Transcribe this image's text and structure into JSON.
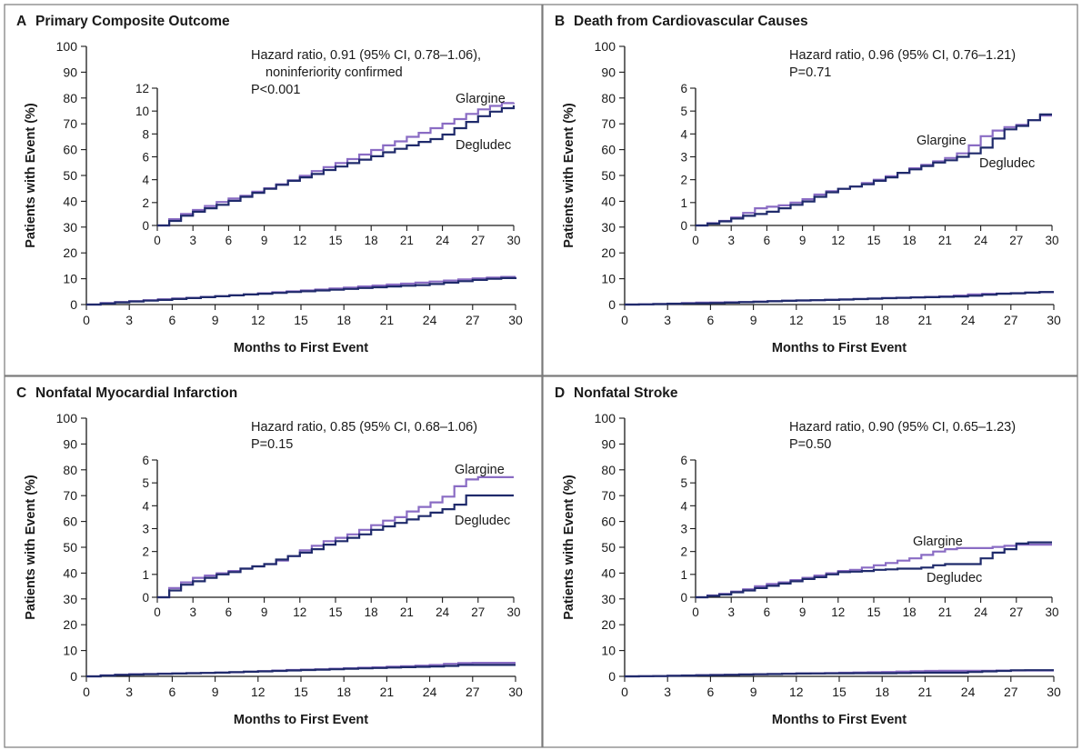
{
  "colors": {
    "glargine": "#8a6cc4",
    "degludec": "#1f2a6b",
    "axis": "#1a1a1a",
    "border": "#7a7a7a"
  },
  "chart_data": [
    {
      "type": "line",
      "letter": "A",
      "title": "Primary Composite Outcome",
      "xlabel": "Months to First Event",
      "ylabel": "Patients with Event (%)",
      "xlim": [
        0,
        30
      ],
      "ylim": [
        0,
        100
      ],
      "x_ticks": [
        "0",
        "3",
        "6",
        "9",
        "12",
        "15",
        "18",
        "21",
        "24",
        "27",
        "30"
      ],
      "y_ticks": [
        "0",
        "10",
        "20",
        "30",
        "40",
        "50",
        "60",
        "70",
        "80",
        "90",
        "100"
      ],
      "annotation": [
        "Hazard ratio, 0.91 (95% CI, 0.78–1.06),",
        "noninferiority confirmed",
        "P<0.001"
      ],
      "inset": {
        "ylim": [
          0,
          12
        ],
        "y_ticks": [
          "0",
          "2",
          "4",
          "6",
          "8",
          "10",
          "12"
        ],
        "x_ticks": [
          "0",
          "3",
          "6",
          "9",
          "12",
          "15",
          "18",
          "21",
          "24",
          "27",
          "30"
        ]
      },
      "series": [
        {
          "name": "Glargine",
          "x": [
            0,
            1,
            2,
            3,
            4,
            5,
            6,
            7,
            8,
            9,
            10,
            11,
            12,
            13,
            14,
            15,
            16,
            17,
            18,
            19,
            20,
            21,
            22,
            23,
            24,
            25,
            26,
            27,
            28,
            29,
            30
          ],
          "values": [
            0,
            0.55,
            1.0,
            1.35,
            1.7,
            2.05,
            2.35,
            2.6,
            2.95,
            3.25,
            3.6,
            3.95,
            4.35,
            4.75,
            5.1,
            5.45,
            5.8,
            6.2,
            6.6,
            7.0,
            7.35,
            7.75,
            8.1,
            8.5,
            8.9,
            9.3,
            9.75,
            10.15,
            10.45,
            10.7,
            10.75
          ]
        },
        {
          "name": "Degludec",
          "x": [
            0,
            1,
            2,
            3,
            4,
            5,
            6,
            7,
            8,
            9,
            10,
            11,
            12,
            13,
            14,
            15,
            16,
            17,
            18,
            19,
            20,
            21,
            22,
            23,
            24,
            25,
            26,
            27,
            28,
            29,
            30
          ],
          "values": [
            0,
            0.4,
            0.85,
            1.2,
            1.5,
            1.8,
            2.15,
            2.5,
            2.85,
            3.2,
            3.55,
            3.9,
            4.2,
            4.5,
            4.85,
            5.15,
            5.45,
            5.75,
            6.05,
            6.4,
            6.7,
            7.0,
            7.3,
            7.55,
            7.95,
            8.5,
            9.05,
            9.55,
            9.95,
            10.25,
            10.5
          ]
        }
      ]
    },
    {
      "type": "line",
      "letter": "B",
      "title": "Death from Cardiovascular Causes",
      "xlabel": "Months to First Event",
      "ylabel": "Patients with Event (%)",
      "xlim": [
        0,
        30
      ],
      "ylim": [
        0,
        100
      ],
      "x_ticks": [
        "0",
        "3",
        "6",
        "9",
        "12",
        "15",
        "18",
        "21",
        "24",
        "27",
        "30"
      ],
      "y_ticks": [
        "0",
        "10",
        "20",
        "30",
        "40",
        "50",
        "60",
        "70",
        "80",
        "90",
        "100"
      ],
      "annotation": [
        "Hazard ratio, 0.96 (95% CI, 0.76–1.21)",
        "P=0.71"
      ],
      "inset": {
        "ylim": [
          0,
          6
        ],
        "y_ticks": [
          "0",
          "1",
          "2",
          "3",
          "4",
          "5",
          "6"
        ],
        "x_ticks": [
          "0",
          "3",
          "6",
          "9",
          "12",
          "15",
          "18",
          "21",
          "24",
          "27",
          "30"
        ]
      },
      "series": [
        {
          "name": "Glargine",
          "x": [
            0,
            1,
            2,
            3,
            4,
            5,
            6,
            7,
            8,
            9,
            10,
            11,
            12,
            13,
            14,
            15,
            16,
            17,
            18,
            19,
            20,
            21,
            22,
            23,
            24,
            25,
            26,
            27,
            28,
            29,
            30
          ],
          "values": [
            0,
            0.1,
            0.2,
            0.35,
            0.55,
            0.75,
            0.82,
            0.88,
            1.0,
            1.15,
            1.35,
            1.5,
            1.6,
            1.7,
            1.85,
            2.0,
            2.15,
            2.3,
            2.5,
            2.65,
            2.8,
            2.95,
            3.15,
            3.5,
            3.9,
            4.15,
            4.3,
            4.4,
            4.6,
            4.8,
            4.8
          ]
        },
        {
          "name": "Degludec",
          "x": [
            0,
            1,
            2,
            3,
            4,
            5,
            6,
            7,
            8,
            9,
            10,
            11,
            12,
            13,
            14,
            15,
            16,
            17,
            18,
            19,
            20,
            21,
            22,
            23,
            24,
            25,
            26,
            27,
            28,
            29,
            30
          ],
          "values": [
            0,
            0.08,
            0.18,
            0.3,
            0.42,
            0.5,
            0.6,
            0.75,
            0.9,
            1.05,
            1.25,
            1.45,
            1.6,
            1.7,
            1.8,
            1.95,
            2.1,
            2.3,
            2.45,
            2.6,
            2.75,
            2.85,
            3.0,
            3.15,
            3.4,
            3.8,
            4.2,
            4.35,
            4.6,
            4.85,
            4.85
          ]
        }
      ]
    },
    {
      "type": "line",
      "letter": "C",
      "title": "Nonfatal Myocardial Infarction",
      "xlabel": "Months to First Event",
      "ylabel": "Patients with Event (%)",
      "xlim": [
        0,
        30
      ],
      "ylim": [
        0,
        100
      ],
      "x_ticks": [
        "0",
        "3",
        "6",
        "9",
        "12",
        "15",
        "18",
        "21",
        "24",
        "27",
        "30"
      ],
      "y_ticks": [
        "0",
        "10",
        "20",
        "30",
        "40",
        "50",
        "60",
        "70",
        "80",
        "90",
        "100"
      ],
      "annotation": [
        "Hazard ratio, 0.85 (95% CI, 0.68–1.06)",
        "P=0.15"
      ],
      "inset": {
        "ylim": [
          0,
          6
        ],
        "y_ticks": [
          "0",
          "1",
          "2",
          "3",
          "4",
          "5",
          "6"
        ],
        "x_ticks": [
          "0",
          "3",
          "6",
          "9",
          "12",
          "15",
          "18",
          "21",
          "24",
          "27",
          "30"
        ]
      },
      "series": [
        {
          "name": "Glargine",
          "x": [
            0,
            1,
            2,
            3,
            4,
            5,
            6,
            7,
            8,
            9,
            10,
            11,
            12,
            13,
            14,
            15,
            16,
            17,
            18,
            19,
            20,
            21,
            22,
            23,
            24,
            25,
            26,
            27,
            28,
            29,
            30
          ],
          "values": [
            0,
            0.4,
            0.65,
            0.85,
            0.95,
            1.05,
            1.15,
            1.25,
            1.35,
            1.45,
            1.6,
            1.8,
            2.05,
            2.25,
            2.45,
            2.6,
            2.75,
            2.95,
            3.15,
            3.35,
            3.5,
            3.75,
            3.95,
            4.15,
            4.4,
            4.85,
            5.15,
            5.25,
            5.25,
            5.25,
            5.25
          ]
        },
        {
          "name": "Degludec",
          "x": [
            0,
            1,
            2,
            3,
            4,
            5,
            6,
            7,
            8,
            9,
            10,
            11,
            12,
            13,
            14,
            15,
            16,
            17,
            18,
            19,
            20,
            21,
            22,
            23,
            24,
            25,
            26,
            27,
            28,
            29,
            30
          ],
          "values": [
            0,
            0.3,
            0.55,
            0.7,
            0.85,
            1.0,
            1.1,
            1.25,
            1.35,
            1.45,
            1.65,
            1.8,
            1.95,
            2.1,
            2.3,
            2.45,
            2.6,
            2.75,
            2.95,
            3.1,
            3.25,
            3.4,
            3.55,
            3.7,
            3.85,
            4.05,
            4.45,
            4.45,
            4.45,
            4.45,
            4.45
          ]
        }
      ]
    },
    {
      "type": "line",
      "letter": "D",
      "title": "Nonfatal Stroke",
      "xlabel": "Months to First Event",
      "ylabel": "Patients with Event (%)",
      "xlim": [
        0,
        30
      ],
      "ylim": [
        0,
        100
      ],
      "x_ticks": [
        "0",
        "3",
        "6",
        "9",
        "12",
        "15",
        "18",
        "21",
        "24",
        "27",
        "30"
      ],
      "y_ticks": [
        "0",
        "10",
        "20",
        "30",
        "40",
        "50",
        "60",
        "70",
        "80",
        "90",
        "100"
      ],
      "annotation": [
        "Hazard ratio, 0.90 (95% CI, 0.65–1.23)",
        "P=0.50"
      ],
      "inset": {
        "ylim": [
          0,
          6
        ],
        "y_ticks": [
          "0",
          "1",
          "2",
          "3",
          "4",
          "5",
          "6"
        ],
        "x_ticks": [
          "0",
          "3",
          "6",
          "9",
          "12",
          "15",
          "18",
          "21",
          "24",
          "27",
          "30"
        ]
      },
      "series": [
        {
          "name": "Glargine",
          "x": [
            0,
            1,
            2,
            3,
            4,
            5,
            6,
            7,
            8,
            9,
            10,
            11,
            12,
            13,
            14,
            15,
            16,
            17,
            18,
            19,
            20,
            21,
            22,
            23,
            24,
            25,
            26,
            27,
            28,
            29,
            30
          ],
          "values": [
            0,
            0.08,
            0.15,
            0.25,
            0.35,
            0.48,
            0.58,
            0.65,
            0.75,
            0.85,
            0.95,
            1.05,
            1.15,
            1.2,
            1.3,
            1.4,
            1.5,
            1.6,
            1.7,
            1.85,
            2.0,
            2.1,
            2.15,
            2.15,
            2.15,
            2.2,
            2.25,
            2.3,
            2.3,
            2.3,
            2.3
          ]
        },
        {
          "name": "Degludec",
          "x": [
            0,
            1,
            2,
            3,
            4,
            5,
            6,
            7,
            8,
            9,
            10,
            11,
            12,
            13,
            14,
            15,
            16,
            17,
            18,
            19,
            20,
            21,
            22,
            23,
            24,
            25,
            26,
            27,
            28,
            29,
            30
          ],
          "values": [
            0,
            0.06,
            0.12,
            0.22,
            0.3,
            0.4,
            0.5,
            0.6,
            0.7,
            0.8,
            0.88,
            1.0,
            1.1,
            1.12,
            1.15,
            1.2,
            1.22,
            1.25,
            1.25,
            1.3,
            1.4,
            1.45,
            1.45,
            1.45,
            1.7,
            1.95,
            2.1,
            2.35,
            2.4,
            2.4,
            2.4
          ]
        }
      ]
    }
  ]
}
